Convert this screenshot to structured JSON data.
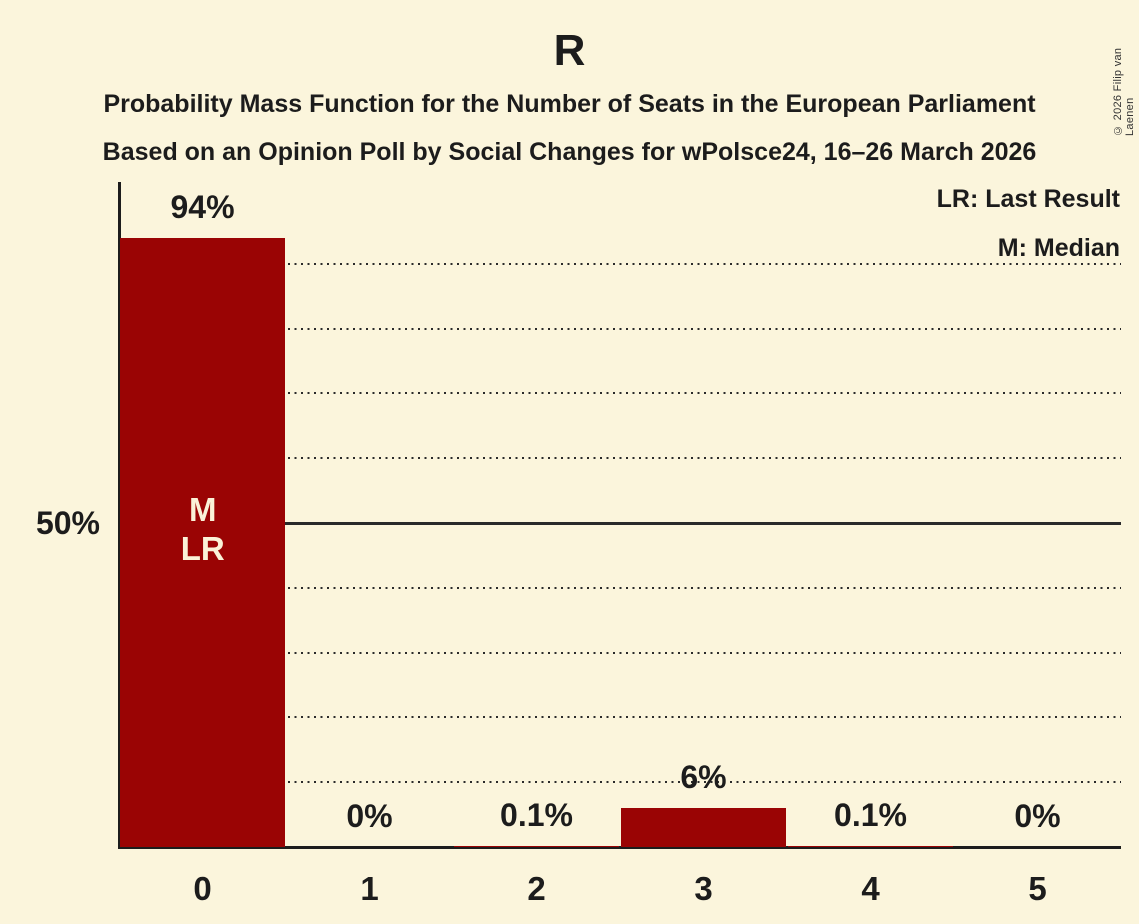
{
  "page": {
    "copyright": "© 2026 Filip van Laenen"
  },
  "header": {
    "title": "R",
    "subtitle1": "Probability Mass Function for the Number of Seats in the European Parliament",
    "subtitle2": "Based on an Opinion Poll by Social Changes for wPolsce24, 16–26 March 2026"
  },
  "legend": {
    "lr": "LR: Last Result",
    "m": "M: Median"
  },
  "colors": {
    "background": "#fbf5dc",
    "bar": "#9a0404",
    "text": "#1c1c1c",
    "bar_inner_text": "#fbf2d8",
    "gridline": "#2a2a2a",
    "copyright_text": "#333333"
  },
  "chart_data": {
    "type": "bar",
    "title": "R",
    "categories": [
      "0",
      "1",
      "2",
      "3",
      "4",
      "5"
    ],
    "values": [
      94,
      0,
      0.1,
      6,
      0.1,
      0
    ],
    "value_labels": [
      "94%",
      "0%",
      "0.1%",
      "6%",
      "0.1%",
      "0%"
    ],
    "xlabel": "",
    "ylabel": "",
    "ylim": [
      0,
      100
    ],
    "y_tick": {
      "value": 50,
      "label": "50%"
    },
    "gridlines_pct": [
      10,
      20,
      30,
      40,
      50,
      60,
      70,
      80,
      90
    ],
    "solid_gridline_pct": 50,
    "grid_style": "dotted",
    "legend_entries": [
      "LR: Last Result",
      "M: Median"
    ],
    "legend_position": "top-right",
    "bar_inner_labels": [
      {
        "category_index": 0,
        "lines": [
          "M",
          "LR"
        ]
      }
    ]
  }
}
